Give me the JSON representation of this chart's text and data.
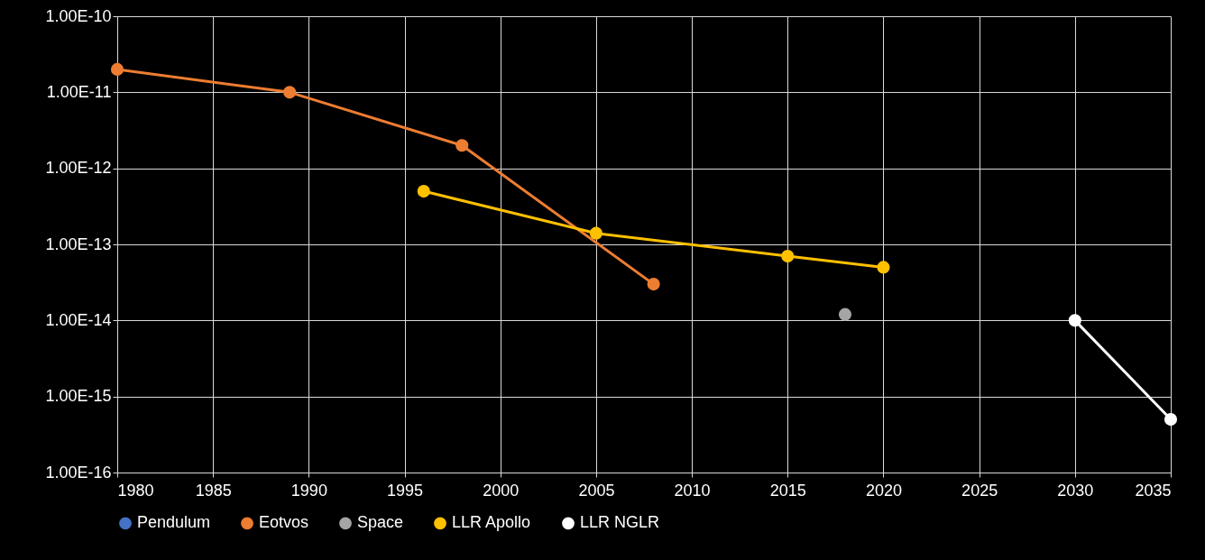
{
  "chart_data": {
    "type": "line",
    "log": "y",
    "grid": true,
    "legend": "bottom",
    "marker": "circle",
    "line_style": "solid",
    "xlim": [
      1980,
      2035
    ],
    "xticks": [
      1980,
      1985,
      1990,
      1995,
      2000,
      2005,
      2010,
      2015,
      2020,
      2025,
      2030,
      2035
    ],
    "ylim": [
      1e-16,
      1e-10
    ],
    "yticks": [
      {
        "value": 1e-16,
        "label": "1.00E-16"
      },
      {
        "value": 1e-15,
        "label": "1.00E-15"
      },
      {
        "value": 1e-14,
        "label": "1.00E-14"
      },
      {
        "value": 1e-13,
        "label": "1.00E-13"
      },
      {
        "value": 1e-12,
        "label": "1.00E-12"
      },
      {
        "value": 1e-11,
        "label": "1.00E-11"
      },
      {
        "value": 1e-10,
        "label": "1.00E-10"
      }
    ],
    "series": [
      {
        "name": "Pendulum",
        "color": "#4472c4"
      },
      {
        "name": "Eotvos",
        "color": "#ed7d31",
        "x": [
          1980,
          1989,
          1998,
          2008
        ],
        "values": [
          2e-11,
          1e-11,
          2e-12,
          3e-14
        ]
      },
      {
        "name": "Space",
        "color": "#a5a5a5",
        "type": "scatter",
        "x": [
          2018
        ],
        "values": [
          1.2e-14
        ]
      },
      {
        "name": "LLR Apollo",
        "color": "#ffc000",
        "x": [
          1996,
          2005,
          2015,
          2020
        ],
        "values": [
          5e-13,
          1.4e-13,
          7e-14,
          5e-14
        ]
      },
      {
        "name": "LLR NGLR",
        "color": "#ffffff",
        "x": [
          2030,
          2035
        ],
        "values": [
          1e-14,
          5e-16
        ]
      }
    ]
  }
}
